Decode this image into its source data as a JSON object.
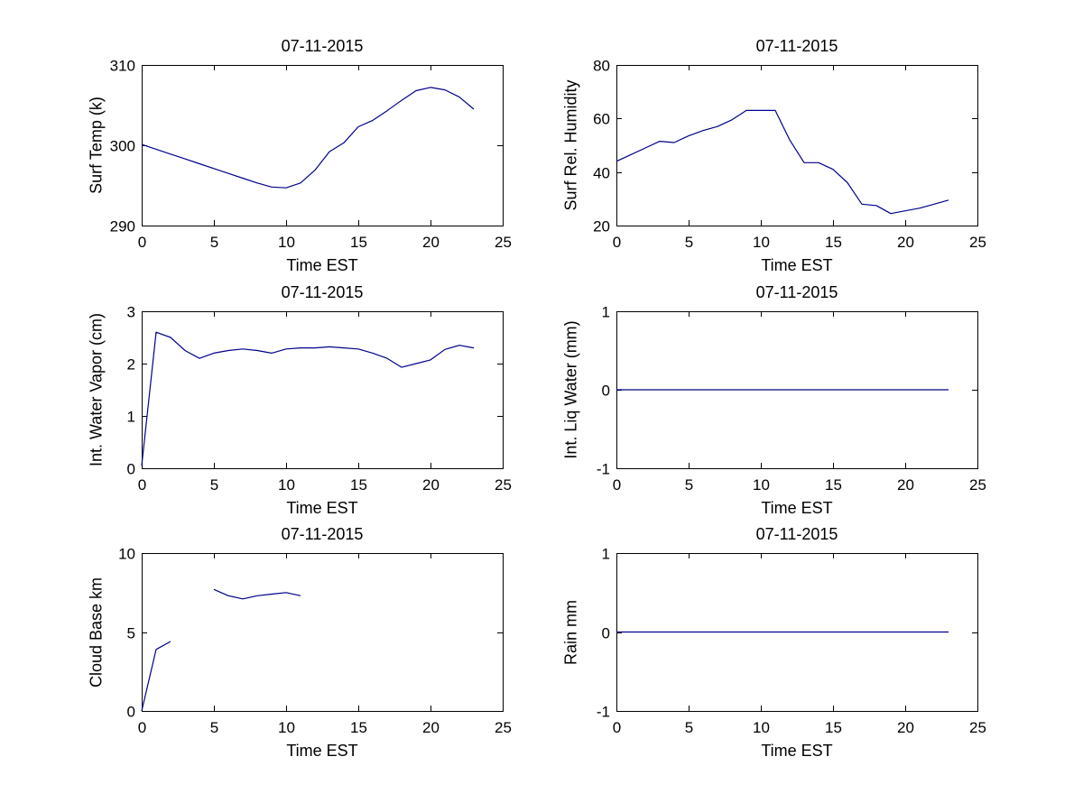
{
  "figure": {
    "background": "#ffffff",
    "axis_color": "#000000",
    "line_color": "#00008C"
  },
  "chart_data": [
    {
      "type": "line",
      "title": "07-11-2015",
      "xlabel": "Time EST",
      "ylabel": "Surf Temp (k)",
      "xlim": [
        0,
        25
      ],
      "ylim": [
        290,
        310
      ],
      "xticks": [
        0,
        5,
        10,
        15,
        20,
        25
      ],
      "yticks": [
        290,
        300,
        310
      ],
      "grid": false,
      "legend": null,
      "series": [
        {
          "x": [
            0,
            1,
            2,
            3,
            4,
            5,
            6,
            7,
            8,
            9,
            10,
            11,
            12,
            13,
            14,
            15,
            16,
            17,
            18,
            19,
            20,
            21,
            22,
            23
          ],
          "y": [
            300.1,
            299.5,
            298.9,
            298.3,
            297.7,
            297.1,
            296.5,
            295.9,
            295.3,
            294.8,
            294.7,
            295.3,
            296.9,
            299.2,
            300.3,
            302.3,
            303.1,
            304.3,
            305.6,
            306.8,
            307.2,
            306.9,
            306.0,
            304.5
          ]
        }
      ]
    },
    {
      "type": "line",
      "title": "07-11-2015",
      "xlabel": "Time EST",
      "ylabel": "Surf Rel. Humidity",
      "xlim": [
        0,
        25
      ],
      "ylim": [
        20,
        80
      ],
      "xticks": [
        0,
        5,
        10,
        15,
        20,
        25
      ],
      "yticks": [
        20,
        40,
        60,
        80
      ],
      "grid": false,
      "legend": null,
      "series": [
        {
          "x": [
            0,
            1,
            2,
            3,
            4,
            5,
            6,
            7,
            8,
            9,
            10,
            11,
            12,
            13,
            14,
            15,
            16,
            17,
            18,
            19,
            20,
            21,
            22,
            23
          ],
          "y": [
            44,
            46.5,
            49,
            51.5,
            51,
            53.5,
            55.5,
            57,
            59.5,
            63,
            63,
            63,
            52,
            43.5,
            43.5,
            41,
            36,
            28,
            27.5,
            24.5,
            25.5,
            26.5,
            28,
            29.5
          ]
        }
      ]
    },
    {
      "type": "line",
      "title": "07-11-2015",
      "xlabel": "Time EST",
      "ylabel": "Int. Water Vapor (cm)",
      "xlim": [
        0,
        25
      ],
      "ylim": [
        0,
        3
      ],
      "xticks": [
        0,
        5,
        10,
        15,
        20,
        25
      ],
      "yticks": [
        0,
        1,
        2,
        3
      ],
      "grid": false,
      "legend": null,
      "series": [
        {
          "x": [
            0,
            1,
            2,
            3,
            4,
            5,
            6,
            7,
            8,
            9,
            10,
            11,
            12,
            13,
            14,
            15,
            16,
            17,
            18,
            19,
            20,
            21,
            22,
            23
          ],
          "y": [
            0.05,
            2.6,
            2.5,
            2.25,
            2.1,
            2.2,
            2.25,
            2.28,
            2.25,
            2.2,
            2.28,
            2.3,
            2.3,
            2.32,
            2.3,
            2.28,
            2.2,
            2.1,
            1.93,
            2.0,
            2.07,
            2.27,
            2.35,
            2.3
          ]
        }
      ]
    },
    {
      "type": "line",
      "title": "07-11-2015",
      "xlabel": "Time EST",
      "ylabel": "Int. Liq Water (mm)",
      "xlim": [
        0,
        25
      ],
      "ylim": [
        -1,
        1
      ],
      "xticks": [
        0,
        5,
        10,
        15,
        20,
        25
      ],
      "yticks": [
        -1,
        0,
        1
      ],
      "grid": false,
      "legend": null,
      "series": [
        {
          "x": [
            0,
            1,
            2,
            3,
            4,
            5,
            6,
            7,
            8,
            9,
            10,
            11,
            12,
            13,
            14,
            15,
            16,
            17,
            18,
            19,
            20,
            21,
            22,
            23
          ],
          "y": [
            0,
            0,
            0,
            0,
            0,
            0,
            0,
            0,
            0,
            0,
            0,
            0,
            0,
            0,
            0,
            0,
            0,
            0,
            0,
            0,
            0,
            0,
            0,
            0
          ]
        }
      ]
    },
    {
      "type": "line",
      "title": "07-11-2015",
      "xlabel": "Time EST",
      "ylabel": "Cloud Base km",
      "xlim": [
        0,
        25
      ],
      "ylim": [
        0,
        10
      ],
      "xticks": [
        0,
        5,
        10,
        15,
        20,
        25
      ],
      "yticks": [
        0,
        5,
        10
      ],
      "grid": false,
      "legend": null,
      "series": [
        {
          "x": [
            0,
            1,
            2
          ],
          "y": [
            0,
            3.9,
            4.4
          ]
        },
        {
          "x": [
            5,
            6,
            7,
            8,
            9,
            10,
            11
          ],
          "y": [
            7.7,
            7.3,
            7.1,
            7.3,
            7.4,
            7.5,
            7.3
          ]
        }
      ]
    },
    {
      "type": "line",
      "title": "07-11-2015",
      "xlabel": "Time EST",
      "ylabel": "Rain mm",
      "xlim": [
        0,
        25
      ],
      "ylim": [
        -1,
        1
      ],
      "xticks": [
        0,
        5,
        10,
        15,
        20,
        25
      ],
      "yticks": [
        -1,
        0,
        1
      ],
      "grid": false,
      "legend": null,
      "series": [
        {
          "x": [
            0,
            1,
            2,
            3,
            4,
            5,
            6,
            7,
            8,
            9,
            10,
            11,
            12,
            13,
            14,
            15,
            16,
            17,
            18,
            19,
            20,
            21,
            22,
            23
          ],
          "y": [
            0,
            0,
            0,
            0,
            0,
            0,
            0,
            0,
            0,
            0,
            0,
            0,
            0,
            0,
            0,
            0,
            0,
            0,
            0,
            0,
            0,
            0,
            0,
            0
          ]
        }
      ]
    }
  ]
}
